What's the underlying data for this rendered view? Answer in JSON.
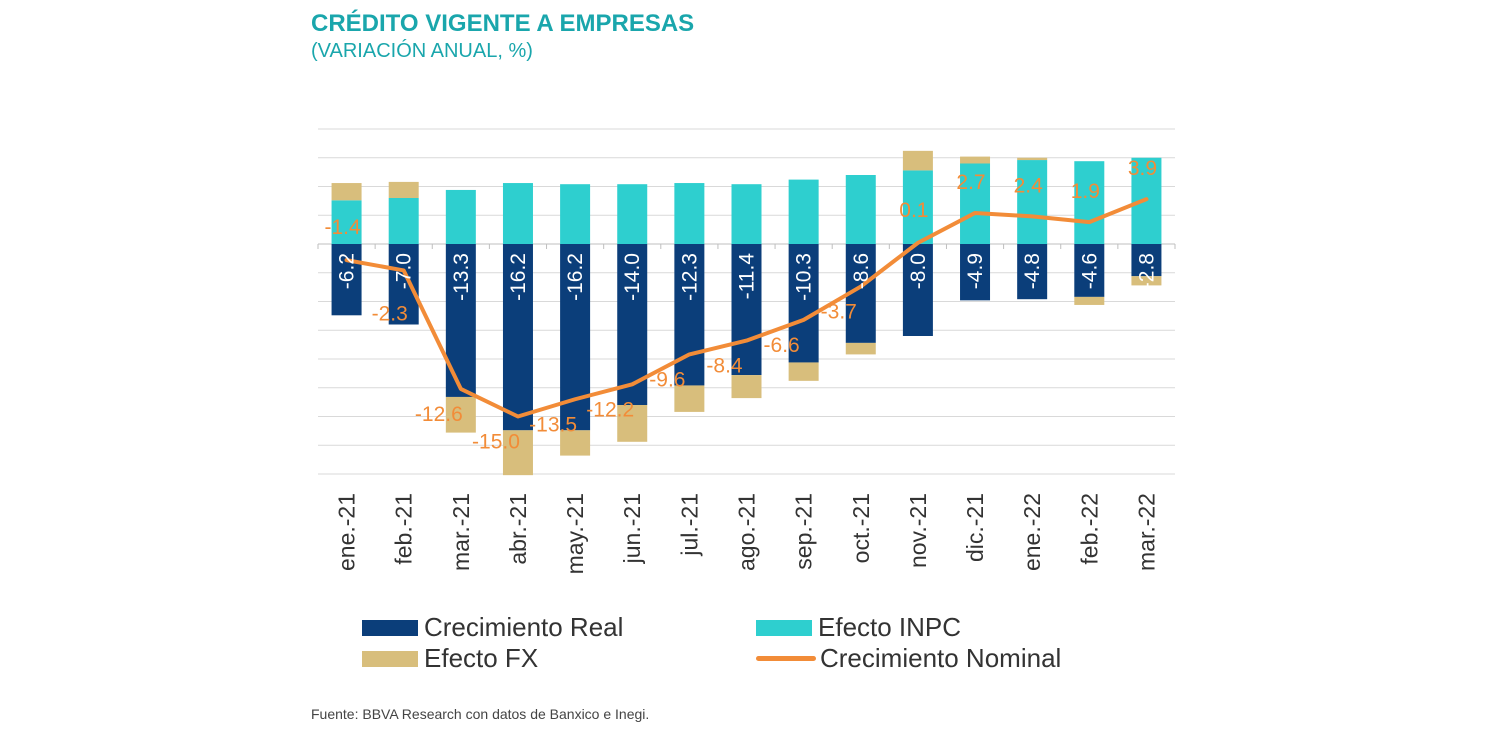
{
  "header": {
    "title": "CRÉDITO VIGENTE A EMPRESAS",
    "subtitle": "(VARIACIÓN ANUAL, %)"
  },
  "footer": {
    "source": "Fuente: BBVA Research con datos de Banxico e Inegi."
  },
  "colors": {
    "real": "#0b3e7a",
    "inpc": "#2ecfcf",
    "fx": "#d8be7c",
    "nominal": "#f28c38",
    "grid": "#d9d9d9",
    "title": "#1aa6ac"
  },
  "legend": {
    "real": "Crecimiento Real",
    "inpc": "Efecto INPC",
    "fx": "Efecto FX",
    "nominal": "Crecimiento Nominal"
  },
  "chart_data": {
    "type": "bar",
    "stacked": true,
    "title": "CRÉDITO VIGENTE A EMPRESAS",
    "subtitle": "(VARIACIÓN ANUAL, %)",
    "categories": [
      "ene.-21",
      "feb.-21",
      "mar.-21",
      "abr.-21",
      "may.-21",
      "jun.-21",
      "jul.-21",
      "ago.-21",
      "sep.-21",
      "oct.-21",
      "nov.-21",
      "dic.-21",
      "ene.-22",
      "feb.-22",
      "mar.-22"
    ],
    "ylim": [
      -20,
      10
    ],
    "grid": true,
    "series": [
      {
        "name": "Crecimiento Real",
        "type": "bar",
        "values": [
          -6.2,
          -7.0,
          -13.3,
          -16.2,
          -16.2,
          -14.0,
          -12.3,
          -11.4,
          -10.3,
          -8.6,
          -8.0,
          -4.9,
          -4.8,
          -4.6,
          -2.8
        ]
      },
      {
        "name": "Efecto INPC",
        "type": "bar",
        "values": [
          3.8,
          4.0,
          4.7,
          5.3,
          5.2,
          5.2,
          5.3,
          5.2,
          5.6,
          6.0,
          6.4,
          7.0,
          7.3,
          7.2,
          7.5
        ]
      },
      {
        "name": "Efecto FX",
        "type": "bar",
        "values": [
          1.5,
          1.4,
          -3.1,
          -3.9,
          -2.2,
          -3.2,
          -2.3,
          -2.0,
          -1.6,
          -1.0,
          1.7,
          0.6,
          0.2,
          -0.7,
          -0.8
        ]
      },
      {
        "name": "Crecimiento Nominal",
        "type": "line",
        "values": [
          -1.4,
          -2.3,
          -12.6,
          -15.0,
          -13.5,
          -12.2,
          -9.6,
          -8.4,
          -6.6,
          -3.7,
          0.1,
          2.7,
          2.4,
          1.9,
          3.9
        ]
      }
    ],
    "real_labels": [
      "-6.2",
      "-7.0",
      "-13.3",
      "-16.2",
      "-16.2",
      "-14.0",
      "-12.3",
      "-11.4",
      "-10.3",
      "-8.6",
      "-8.0",
      "-4.9",
      "-4.8",
      "-4.6",
      "-2.8"
    ],
    "nominal_labels": [
      "-1.4",
      "-2.3",
      "-12.6",
      "-15.0",
      "-13.5",
      "-12.2",
      "-9.6",
      "-8.4",
      "-6.6",
      "-3.7",
      "0.1",
      "2.7",
      "2.4",
      "1.9",
      "3.9"
    ]
  }
}
